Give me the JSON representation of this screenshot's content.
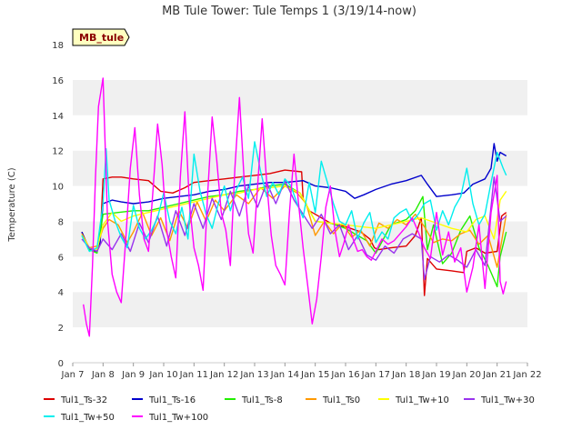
{
  "chart_data": {
    "type": "line",
    "title": "MB Tule Tower: Tule Temps 1 (3/19/14-now)",
    "xlabel": "",
    "ylabel": "Temperature (C)",
    "site_label": "MB_tule",
    "xlim": [
      7,
      22
    ],
    "ylim": [
      0,
      18
    ],
    "xticks": [
      "Jan 7",
      "Jan 8",
      "Jan 9",
      "Jan 10",
      "Jan 11",
      "Jan 12",
      "Jan 13",
      "Jan 14",
      "Jan 15",
      "Jan 16",
      "Jan 17",
      "Jan 18",
      "Jan 19",
      "Jan 20",
      "Jan 21",
      "Jan 22"
    ],
    "yticks": [
      0,
      2,
      4,
      6,
      8,
      10,
      12,
      14,
      16,
      18
    ],
    "grid": "horizontal bands",
    "legend_position": "bottom",
    "series": [
      {
        "name": "Tul1_Ts-32",
        "color": "#dd0000",
        "x": [
          7.3,
          7.55,
          7.8,
          7.9,
          8.0,
          8.3,
          8.6,
          9.0,
          9.5,
          9.9,
          10.3,
          10.7,
          11.0,
          11.5,
          12.0,
          12.5,
          13.0,
          13.5,
          14.0,
          14.55,
          14.6,
          14.8,
          15.0,
          15.5,
          16.0,
          16.5,
          16.8,
          16.95,
          17.1,
          17.5,
          18.0,
          18.3,
          18.5,
          18.6,
          18.7,
          19.0,
          19.5,
          19.9,
          20.0,
          20.3,
          20.6,
          21.0,
          21.15,
          21.3
        ],
        "y": [
          7.4,
          6.4,
          6.3,
          6.8,
          10.4,
          10.5,
          10.5,
          10.4,
          10.3,
          9.7,
          9.6,
          9.9,
          10.2,
          10.3,
          10.4,
          10.5,
          10.6,
          10.7,
          10.9,
          10.8,
          9.3,
          8.6,
          8.4,
          7.9,
          7.7,
          7.4,
          7.0,
          6.5,
          6.4,
          6.5,
          6.6,
          7.2,
          8.2,
          3.8,
          5.9,
          5.3,
          5.2,
          5.1,
          6.3,
          6.5,
          6.2,
          6.3,
          8.3,
          8.5
        ]
      },
      {
        "name": "Tul1_Ts-16",
        "color": "#0000cc",
        "x": [
          7.3,
          7.55,
          7.8,
          7.9,
          8.0,
          8.3,
          8.6,
          9.0,
          9.5,
          10.0,
          10.5,
          11.0,
          11.5,
          12.0,
          12.5,
          13.0,
          13.5,
          14.0,
          14.6,
          15.0,
          15.5,
          16.0,
          16.3,
          16.6,
          17.0,
          17.5,
          18.0,
          18.5,
          18.7,
          19.0,
          19.5,
          19.9,
          20.2,
          20.6,
          20.8,
          20.9,
          21.0,
          21.1,
          21.3
        ],
        "y": [
          7.4,
          6.4,
          6.3,
          6.8,
          9.0,
          9.2,
          9.1,
          9.0,
          9.1,
          9.3,
          9.4,
          9.5,
          9.7,
          9.8,
          10.0,
          10.1,
          10.2,
          10.2,
          10.3,
          10.0,
          9.9,
          9.7,
          9.3,
          9.5,
          9.8,
          10.1,
          10.3,
          10.6,
          10.1,
          9.4,
          9.5,
          9.6,
          10.1,
          10.4,
          11.0,
          12.4,
          11.4,
          11.9,
          11.7
        ]
      },
      {
        "name": "Tul1_Ts-8",
        "color": "#22ee00",
        "x": [
          7.3,
          7.55,
          7.8,
          8.0,
          8.5,
          9.0,
          9.5,
          10.0,
          10.5,
          11.0,
          11.5,
          12.0,
          12.5,
          13.0,
          13.5,
          14.0,
          14.5,
          15.0,
          15.5,
          16.0,
          16.3,
          16.7,
          17.0,
          17.5,
          18.0,
          18.3,
          18.55,
          18.7,
          18.9,
          19.2,
          19.5,
          19.8,
          20.1,
          20.4,
          20.7,
          21.0,
          21.1,
          21.3
        ],
        "y": [
          7.2,
          6.4,
          6.2,
          8.4,
          8.5,
          8.6,
          8.6,
          8.8,
          9.0,
          9.2,
          9.4,
          9.5,
          9.7,
          9.8,
          10.0,
          10.1,
          9.6,
          8.0,
          7.9,
          7.6,
          7.3,
          6.9,
          6.2,
          7.8,
          8.1,
          8.6,
          9.4,
          6.4,
          7.8,
          5.6,
          6.2,
          7.5,
          8.3,
          6.5,
          5.5,
          4.3,
          6.0,
          7.4
        ]
      },
      {
        "name": "Tul1_Ts0",
        "color": "#ff9900",
        "x": [
          7.3,
          7.55,
          7.8,
          8.0,
          8.2,
          8.5,
          8.8,
          9.0,
          9.3,
          9.6,
          9.9,
          10.2,
          10.5,
          10.8,
          11.1,
          11.4,
          11.7,
          12.0,
          12.4,
          12.8,
          13.2,
          13.6,
          14.0,
          14.4,
          14.7,
          15.0,
          15.3,
          15.6,
          15.9,
          16.2,
          16.5,
          16.8,
          17.1,
          17.4,
          17.7,
          18.0,
          18.3,
          18.6,
          18.9,
          19.2,
          19.5,
          19.8,
          20.1,
          20.4,
          20.7,
          21.0,
          21.3
        ],
        "y": [
          7.3,
          6.5,
          6.6,
          7.6,
          8.1,
          7.8,
          6.8,
          7.4,
          8.5,
          7.2,
          8.2,
          6.9,
          8.6,
          7.6,
          9.1,
          8.0,
          9.2,
          8.6,
          9.5,
          9.0,
          9.9,
          9.3,
          10.0,
          9.6,
          9.0,
          7.2,
          8.0,
          7.3,
          7.9,
          7.1,
          7.5,
          6.6,
          7.9,
          7.6,
          8.1,
          7.8,
          8.4,
          7.7,
          6.8,
          7.0,
          6.9,
          7.3,
          7.5,
          6.7,
          7.2,
          5.4,
          8.4
        ]
      },
      {
        "name": "Tul1_Tw+10",
        "color": "#ffff00",
        "x": [
          7.3,
          7.55,
          7.8,
          8.0,
          8.3,
          8.6,
          9.0,
          9.5,
          10.0,
          10.5,
          11.0,
          11.5,
          12.0,
          12.5,
          13.0,
          13.5,
          14.0,
          14.5,
          15.0,
          15.5,
          16.0,
          16.5,
          17.0,
          17.5,
          18.0,
          18.5,
          19.0,
          19.5,
          20.0,
          20.3,
          20.6,
          20.9,
          21.1,
          21.3
        ],
        "y": [
          7.2,
          6.5,
          6.4,
          7.8,
          8.5,
          8.0,
          8.3,
          8.5,
          8.7,
          8.9,
          9.1,
          9.3,
          9.5,
          9.6,
          9.8,
          9.9,
          10.0,
          9.6,
          8.0,
          7.9,
          7.8,
          7.7,
          7.6,
          7.8,
          8.0,
          8.2,
          7.9,
          7.6,
          7.4,
          8.1,
          8.3,
          7.0,
          9.2,
          9.7
        ]
      },
      {
        "name": "Tul1_Tw+30",
        "color": "#9933ee",
        "x": [
          7.3,
          7.55,
          7.8,
          8.0,
          8.3,
          8.6,
          8.9,
          9.2,
          9.5,
          9.8,
          10.1,
          10.4,
          10.7,
          11.0,
          11.3,
          11.6,
          11.9,
          12.2,
          12.5,
          12.8,
          13.1,
          13.4,
          13.7,
          14.0,
          14.3,
          14.6,
          14.9,
          15.2,
          15.5,
          15.8,
          16.1,
          16.4,
          16.7,
          17.0,
          17.3,
          17.6,
          17.9,
          18.2,
          18.5,
          18.6,
          18.8,
          19.1,
          19.4,
          19.7,
          20.0,
          20.3,
          20.6,
          20.9,
          21.1,
          21.3
        ],
        "y": [
          7.0,
          6.5,
          6.3,
          7.0,
          6.4,
          7.3,
          6.3,
          7.9,
          6.8,
          8.3,
          6.6,
          8.6,
          7.2,
          9.0,
          7.6,
          9.3,
          8.1,
          9.7,
          8.3,
          10.0,
          8.8,
          10.2,
          9.0,
          10.3,
          9.2,
          8.4,
          7.6,
          8.4,
          7.3,
          7.8,
          6.4,
          7.2,
          6.1,
          5.8,
          6.6,
          6.2,
          7.0,
          7.3,
          7.0,
          4.7,
          6.0,
          5.7,
          6.1,
          5.8,
          5.4,
          6.4,
          5.5,
          10.5,
          8.0,
          8.3
        ]
      },
      {
        "name": "Tul1_Tw+50",
        "color": "#00eeee",
        "x": [
          7.3,
          7.55,
          7.8,
          8.0,
          8.1,
          8.2,
          8.4,
          8.6,
          8.8,
          9.0,
          9.2,
          9.4,
          9.6,
          9.8,
          10.0,
          10.2,
          10.4,
          10.6,
          10.8,
          11.0,
          11.2,
          11.4,
          11.6,
          11.8,
          12.0,
          12.2,
          12.4,
          12.6,
          12.8,
          13.0,
          13.2,
          13.4,
          13.6,
          13.8,
          14.0,
          14.2,
          14.4,
          14.6,
          14.8,
          15.0,
          15.2,
          15.4,
          15.6,
          15.8,
          16.0,
          16.2,
          16.4,
          16.6,
          16.8,
          17.0,
          17.2,
          17.4,
          17.6,
          17.8,
          18.0,
          18.2,
          18.4,
          18.6,
          18.8,
          19.0,
          19.2,
          19.4,
          19.6,
          19.8,
          20.0,
          20.2,
          20.4,
          20.6,
          20.8,
          21.0,
          21.2,
          21.3
        ],
        "y": [
          7.2,
          6.3,
          6.5,
          9.0,
          12.1,
          9.2,
          8.0,
          7.1,
          6.5,
          8.9,
          7.6,
          7.0,
          7.5,
          8.2,
          9.6,
          8.0,
          7.3,
          8.8,
          7.0,
          11.8,
          9.7,
          8.4,
          7.6,
          9.0,
          10.0,
          8.6,
          9.8,
          10.5,
          9.3,
          12.5,
          10.8,
          9.4,
          10.2,
          9.5,
          10.4,
          10.0,
          9.0,
          8.2,
          10.2,
          8.5,
          11.4,
          10.2,
          9.0,
          8.0,
          7.8,
          8.6,
          7.0,
          7.9,
          8.5,
          6.8,
          7.4,
          7.0,
          8.2,
          8.5,
          8.7,
          8.0,
          8.4,
          9.0,
          9.2,
          7.5,
          8.6,
          7.8,
          8.8,
          9.4,
          11.0,
          9.0,
          7.8,
          8.4,
          10.2,
          11.9,
          11.0,
          10.6
        ]
      },
      {
        "name": "Tul1_Tw+100",
        "color": "#ff00ff",
        "x": [
          7.35,
          7.45,
          7.55,
          7.65,
          7.75,
          7.85,
          8.0,
          8.15,
          8.3,
          8.45,
          8.6,
          8.75,
          8.9,
          9.05,
          9.2,
          9.35,
          9.5,
          9.65,
          9.8,
          9.95,
          10.1,
          10.25,
          10.4,
          10.55,
          10.7,
          10.85,
          11.0,
          11.15,
          11.3,
          11.45,
          11.6,
          11.75,
          11.9,
          12.05,
          12.2,
          12.35,
          12.5,
          12.65,
          12.8,
          12.95,
          13.1,
          13.25,
          13.4,
          13.55,
          13.7,
          13.85,
          14.0,
          14.15,
          14.3,
          14.45,
          14.6,
          14.75,
          14.9,
          15.05,
          15.2,
          15.35,
          15.5,
          15.65,
          15.8,
          15.95,
          16.1,
          16.25,
          16.4,
          16.55,
          16.7,
          16.85,
          17.0,
          17.2,
          17.4,
          17.6,
          17.8,
          18.0,
          18.2,
          18.4,
          18.6,
          18.8,
          19.0,
          19.2,
          19.4,
          19.6,
          19.8,
          20.0,
          20.2,
          20.4,
          20.6,
          20.8,
          21.0,
          21.1,
          21.2,
          21.3
        ],
        "y": [
          3.3,
          2.2,
          1.5,
          5.5,
          10.5,
          14.5,
          16.1,
          8.0,
          5.0,
          4.0,
          3.4,
          7.0,
          11.0,
          13.3,
          9.5,
          7.0,
          6.3,
          9.8,
          13.5,
          11.2,
          7.5,
          6.0,
          4.8,
          10.5,
          14.2,
          9.0,
          6.5,
          5.5,
          4.1,
          9.5,
          13.9,
          11.5,
          8.5,
          7.5,
          5.5,
          11.0,
          15.0,
          10.5,
          7.3,
          6.2,
          10.0,
          13.8,
          10.2,
          7.2,
          5.5,
          5.0,
          4.4,
          8.5,
          11.8,
          9.0,
          6.5,
          4.4,
          2.2,
          3.6,
          6.0,
          8.8,
          10.0,
          7.5,
          6.0,
          6.8,
          7.8,
          7.0,
          6.3,
          6.4,
          6.0,
          5.8,
          6.3,
          7.0,
          6.7,
          6.9,
          7.3,
          7.7,
          8.2,
          7.4,
          6.5,
          5.9,
          8.5,
          6.1,
          7.4,
          5.7,
          6.5,
          4.0,
          5.4,
          7.8,
          4.2,
          8.5,
          10.6,
          4.6,
          3.9,
          4.6
        ]
      }
    ]
  }
}
